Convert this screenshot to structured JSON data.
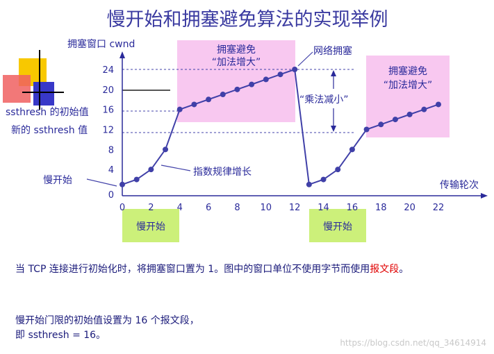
{
  "title": "慢开始和拥塞避免算法的实现举例",
  "chart_data": {
    "type": "line",
    "ylabel": "拥塞窗口 cwnd",
    "xlabel": "传输轮次",
    "x_ticks": [
      0,
      2,
      4,
      6,
      8,
      10,
      12,
      14,
      16,
      18,
      20,
      22
    ],
    "y_ticks": [
      0,
      4,
      8,
      12,
      16,
      20,
      24
    ],
    "xlim": [
      0,
      22
    ],
    "ylim": [
      0,
      24
    ],
    "series": [
      {
        "x": [
          0,
          1,
          2,
          3,
          4,
          5,
          6,
          7,
          8,
          9,
          10,
          11,
          12,
          13,
          14,
          15,
          16,
          17,
          18,
          19,
          20,
          21,
          22
        ],
        "values": [
          1,
          2,
          4,
          8,
          16,
          17,
          18,
          19,
          20,
          21,
          22,
          23,
          24,
          1,
          2,
          4,
          8,
          12,
          13,
          14,
          15,
          16,
          17
        ]
      }
    ],
    "annotations": {
      "ssthresh_init": "ssthresh 的初始值",
      "ssthresh_new": "新的 ssthresh 值",
      "slow_start_left": "慢开始",
      "exp_growth": "指数规律增长",
      "congestion": "网络拥塞",
      "mult_decrease": "“乘法减小”",
      "ca1_line1": "拥塞避免",
      "ca1_line2": "“加法增大”",
      "ca2_line1": "拥塞避免",
      "ca2_line2": "“加法增大”",
      "ss_box1": "慢开始",
      "ss_box2": "慢开始"
    },
    "grid": false
  },
  "paragraph1": {
    "text": "当 TCP 连接进行初始化时，将拥塞窗口置为 1。图中的窗口单位不使用字节而使用",
    "red_text": "报文段",
    "end": "。"
  },
  "paragraph2": {
    "line1": "慢开始门限的初始值设置为 16 个报文段，",
    "line2": "即 ssthresh = 16。"
  },
  "watermark": "https://blog.csdn.net/qq_34614914",
  "colors": {
    "line": "#4040a8",
    "pink_box": "#f8c8f0",
    "green_box": "#ccf07a",
    "text_blue": "#2a2a9a",
    "highlight_red": "#e00000"
  }
}
